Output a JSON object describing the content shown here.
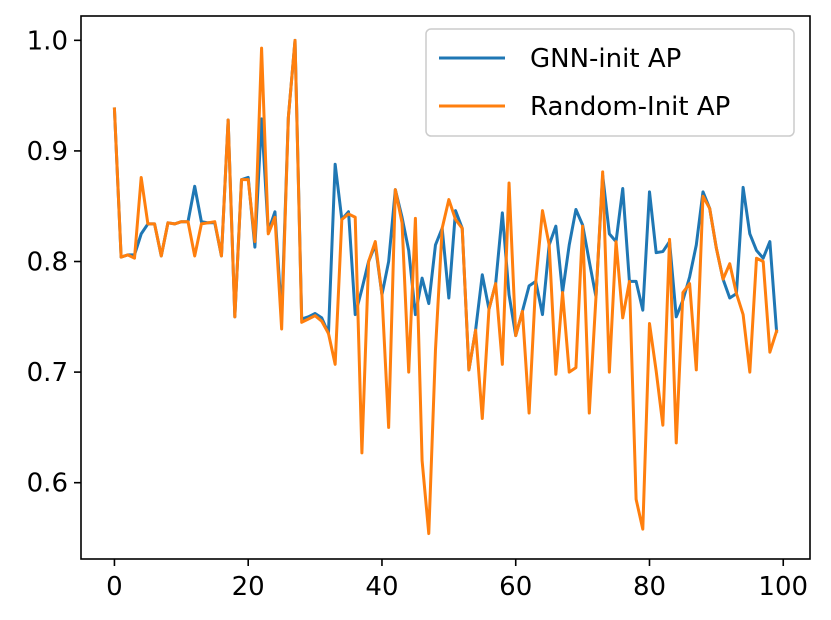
{
  "chart_data": {
    "type": "line",
    "title": "",
    "xlabel": "",
    "ylabel": "",
    "xlim": [
      -5,
      104
    ],
    "ylim": [
      0.531,
      1.022
    ],
    "xticks": [
      0,
      20,
      40,
      60,
      80,
      100
    ],
    "yticks": [
      0.6,
      0.7,
      0.8,
      0.9,
      1.0
    ],
    "xtick_labels": [
      "0",
      "20",
      "40",
      "60",
      "80",
      "100"
    ],
    "ytick_labels": [
      "0.6",
      "0.7",
      "0.8",
      "0.9",
      "1.0"
    ],
    "grid": false,
    "legend_position": "top-right",
    "x": [
      0,
      1,
      2,
      3,
      4,
      5,
      6,
      7,
      8,
      9,
      10,
      11,
      12,
      13,
      14,
      15,
      16,
      17,
      18,
      19,
      20,
      21,
      22,
      23,
      24,
      25,
      26,
      27,
      28,
      29,
      30,
      31,
      32,
      33,
      34,
      35,
      36,
      37,
      38,
      39,
      40,
      41,
      42,
      43,
      44,
      45,
      46,
      47,
      48,
      49,
      50,
      51,
      52,
      53,
      54,
      55,
      56,
      57,
      58,
      59,
      60,
      61,
      62,
      63,
      64,
      65,
      66,
      67,
      68,
      69,
      70,
      71,
      72,
      73,
      74,
      75,
      76,
      77,
      78,
      79,
      80,
      81,
      82,
      83,
      84,
      85,
      86,
      87,
      88,
      89,
      90,
      91,
      92,
      93,
      94,
      95,
      96,
      97,
      98,
      99
    ],
    "series": [
      {
        "name": "GNN-init AP",
        "color": "#1f77b4",
        "values": [
          0.938,
          0.804,
          0.806,
          0.806,
          0.825,
          0.834,
          0.834,
          0.805,
          0.835,
          0.834,
          0.836,
          0.836,
          0.868,
          0.836,
          0.835,
          0.835,
          0.805,
          0.928,
          0.75,
          0.874,
          0.876,
          0.813,
          0.929,
          0.827,
          0.845,
          0.75,
          0.93,
          1.0,
          0.748,
          0.75,
          0.753,
          0.749,
          0.735,
          0.888,
          0.838,
          0.845,
          0.752,
          0.775,
          0.8,
          0.815,
          0.77,
          0.8,
          0.865,
          0.84,
          0.81,
          0.752,
          0.785,
          0.762,
          0.815,
          0.83,
          0.767,
          0.846,
          0.83,
          0.702,
          0.738,
          0.788,
          0.757,
          0.78,
          0.844,
          0.77,
          0.733,
          0.755,
          0.778,
          0.782,
          0.752,
          0.815,
          0.832,
          0.772,
          0.815,
          0.847,
          0.833,
          0.8,
          0.768,
          0.878,
          0.825,
          0.818,
          0.866,
          0.782,
          0.782,
          0.756,
          0.863,
          0.808,
          0.809,
          0.818,
          0.75,
          0.765,
          0.786,
          0.815,
          0.863,
          0.848,
          0.812,
          0.784,
          0.767,
          0.771,
          0.867,
          0.825,
          0.81,
          0.803,
          0.818,
          0.737
        ]
      },
      {
        "name": "Random-Init AP",
        "color": "#ff7f0e",
        "values": [
          0.938,
          0.804,
          0.806,
          0.803,
          0.876,
          0.834,
          0.834,
          0.805,
          0.835,
          0.834,
          0.836,
          0.836,
          0.805,
          0.834,
          0.835,
          0.836,
          0.805,
          0.928,
          0.75,
          0.874,
          0.874,
          0.818,
          0.993,
          0.825,
          0.84,
          0.739,
          0.93,
          1.0,
          0.745,
          0.748,
          0.751,
          0.746,
          0.735,
          0.707,
          0.838,
          0.843,
          0.84,
          0.627,
          0.8,
          0.818,
          0.77,
          0.65,
          0.865,
          0.835,
          0.7,
          0.839,
          0.62,
          0.554,
          0.72,
          0.83,
          0.856,
          0.838,
          0.83,
          0.702,
          0.738,
          0.658,
          0.757,
          0.78,
          0.707,
          0.871,
          0.733,
          0.755,
          0.663,
          0.782,
          0.846,
          0.815,
          0.698,
          0.772,
          0.7,
          0.704,
          0.832,
          0.663,
          0.768,
          0.881,
          0.7,
          0.818,
          0.749,
          0.782,
          0.585,
          0.558,
          0.744,
          0.701,
          0.652,
          0.82,
          0.636,
          0.772,
          0.78,
          0.702,
          0.859,
          0.848,
          0.812,
          0.784,
          0.798,
          0.771,
          0.752,
          0.7,
          0.803,
          0.8,
          0.718,
          0.737
        ]
      }
    ]
  }
}
